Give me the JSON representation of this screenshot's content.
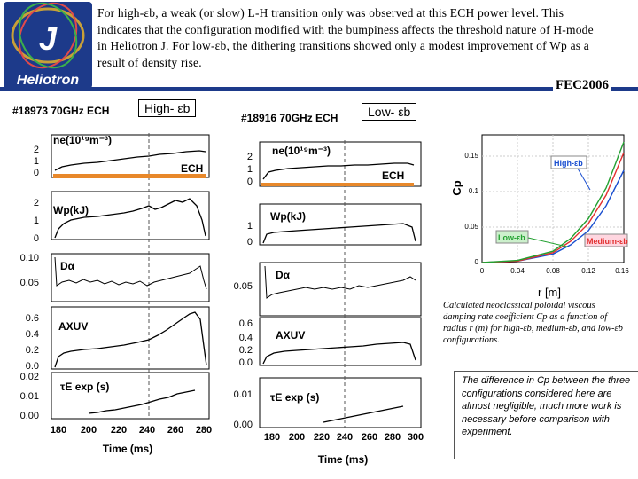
{
  "logo": {
    "letter": "J",
    "name": "Heliotron"
  },
  "intro_text": "For high-εb, a weak (or slow) L-H transition only was observed at this ECH power level. This indicates that the configuration modified with the bumpiness affects the threshold nature of H-mode in Heliotron J. For low-εb, the dithering transitions showed only a modest improvement of Wp as a result of density rise.",
  "conference": "FEC2006",
  "left_panel": {
    "shot": "#18973 70GHz  ECH",
    "label": "High- εb",
    "ech": "ECH",
    "ne_label": "ne(10¹⁹m⁻³)",
    "wp_label": "Wp(kJ)",
    "da_label": "Dα",
    "axuv_label": "AXUV",
    "tau_label": "τE exp (s)",
    "xlabel": "Time  (ms)",
    "xticks": [
      "180",
      "200",
      "220",
      "240",
      "260",
      "280"
    ],
    "ne_ticks": [
      "2",
      "1",
      "0"
    ],
    "wp_ticks": [
      "2",
      "1",
      "0"
    ],
    "da_ticks": [
      "0.10",
      "0.05"
    ],
    "axuv_ticks": [
      "0.6",
      "0.4",
      "0.2",
      "0.0"
    ],
    "tau_ticks": [
      "0.02",
      "0.01",
      "0.00"
    ]
  },
  "mid_panel": {
    "shot": "#18916 70GHz  ECH",
    "label": "Low- εb",
    "ech": "ECH",
    "ne_label": "ne(10¹⁹m⁻³)",
    "wp_label": "Wp(kJ)",
    "da_label": "Dα",
    "axuv_label": "AXUV",
    "tau_label": "τE exp (s)",
    "xlabel": "Time (ms)",
    "xticks": [
      "180",
      "200",
      "220",
      "240",
      "260",
      "280",
      "300"
    ],
    "ne_ticks": [
      "2",
      "1",
      "0"
    ],
    "wp_ticks": [
      "1",
      "0"
    ],
    "da_ticks": [
      "0.05"
    ],
    "axuv_ticks": [
      "0.6",
      "0.4",
      "0.2",
      "0.0"
    ],
    "tau_ticks": [
      "0.01",
      "0.00"
    ]
  },
  "cp_chart": {
    "ylabel": "Cp",
    "xlabel": "r  [m]",
    "xticks": [
      "0",
      "0.04",
      "0.08",
      "0.12",
      "0.16"
    ],
    "yticks": [
      "0.15",
      "0.1",
      "0.05",
      "0"
    ],
    "legend": [
      "High-εb",
      "Medium-εb",
      "Low-εb"
    ],
    "colors": {
      "high": "#1a4fd0",
      "medium": "#e23030",
      "low": "#22a030"
    }
  },
  "chart_data": [
    {
      "type": "line",
      "x": [
        0,
        0.04,
        0.08,
        0.1,
        0.12,
        0.14,
        0.16
      ],
      "xlim": [
        0,
        0.16
      ],
      "ylim": [
        0,
        0.18
      ],
      "xlabel": "r  [m]",
      "ylabel": "Cp",
      "series": [
        {
          "name": "High-εb",
          "values": [
            0,
            0.002,
            0.012,
            0.025,
            0.045,
            0.08,
            0.13
          ]
        },
        {
          "name": "Medium-εb",
          "values": [
            0,
            0.002,
            0.014,
            0.03,
            0.055,
            0.095,
            0.155
          ]
        },
        {
          "name": "Low-εb",
          "values": [
            0,
            0.003,
            0.016,
            0.034,
            0.062,
            0.105,
            0.17
          ]
        }
      ]
    }
  ],
  "caption_1": "Calculated neoclassical poloidal viscous damping rate coefficient Cp as a function of radius r (m) for high-εb, medium-εb, and low-εb configurations.",
  "caption_2": "The difference in Cp between the three configurations considered here are almost negligible, much more work is necessary before comparison with experiment."
}
